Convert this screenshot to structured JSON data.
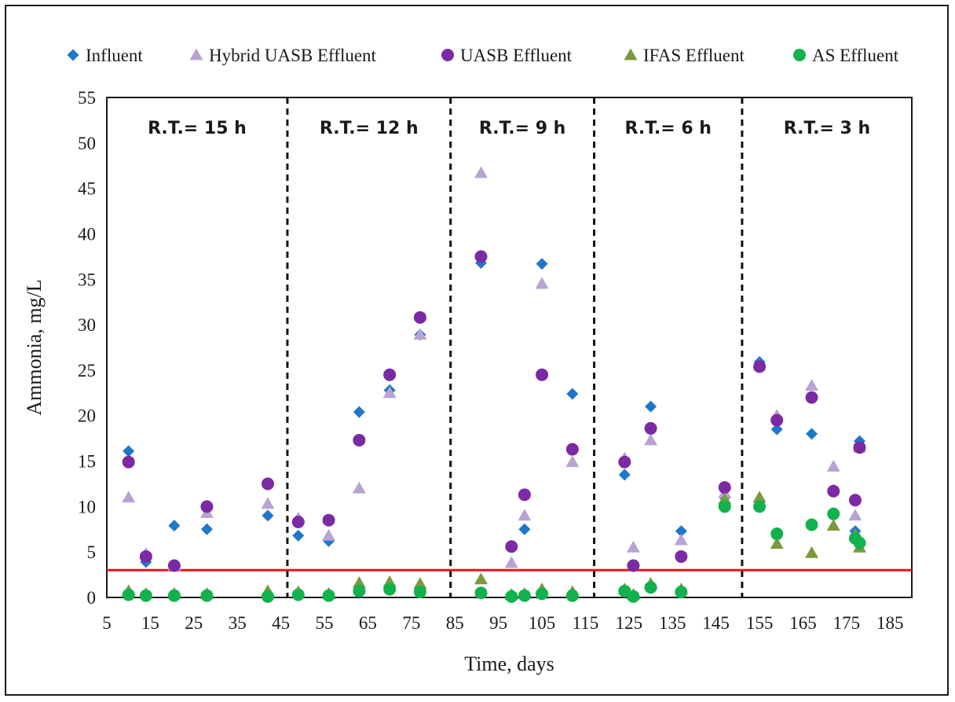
{
  "chart_data": {
    "type": "scatter",
    "xlabel": "Time, days",
    "ylabel": "Ammonia, mg/L",
    "xlim": [
      5,
      190
    ],
    "ylim": [
      0,
      55
    ],
    "x_ticks": [
      5,
      15,
      25,
      35,
      45,
      55,
      65,
      75,
      85,
      95,
      105,
      115,
      125,
      135,
      145,
      155,
      165,
      175,
      185
    ],
    "y_ticks": [
      0,
      5,
      10,
      15,
      20,
      25,
      30,
      35,
      40,
      45,
      50,
      55
    ],
    "threshold": {
      "y": 3,
      "color": "#e8141b"
    },
    "periods": [
      {
        "label": "R.T.= 15 h",
        "x_start": 5,
        "x_end": 46.5
      },
      {
        "label": "R.T.= 12 h",
        "x_start": 46.5,
        "x_end": 84
      },
      {
        "label": "R.T.= 9 h",
        "x_start": 84,
        "x_end": 117
      },
      {
        "label": "R.T.= 6 h",
        "x_start": 117,
        "x_end": 151
      },
      {
        "label": "R.T.= 3 h",
        "x_start": 151,
        "x_end": 190
      }
    ],
    "series": [
      {
        "name": "Influent",
        "marker": "diamond",
        "color": "#1f77c9",
        "points": [
          [
            10,
            16.1
          ],
          [
            14,
            3.9
          ],
          [
            20.5,
            7.9
          ],
          [
            28,
            7.5
          ],
          [
            42,
            9
          ],
          [
            49,
            6.8
          ],
          [
            56,
            6.2
          ],
          [
            63,
            20.4
          ],
          [
            70,
            22.8
          ],
          [
            77,
            28.9
          ],
          [
            91,
            36.8
          ],
          [
            98,
            0.3
          ],
          [
            101,
            7.5
          ],
          [
            105,
            36.7
          ],
          [
            112,
            22.4
          ],
          [
            124,
            13.5
          ],
          [
            130,
            21
          ],
          [
            137,
            7.3
          ],
          [
            147,
            11
          ],
          [
            155,
            25.9
          ],
          [
            159,
            18.5
          ],
          [
            167,
            18
          ],
          [
            172,
            11.8
          ],
          [
            177,
            7.3
          ],
          [
            178,
            17.2
          ]
        ]
      },
      {
        "name": "Hybrid UASB Effluent",
        "marker": "triangle",
        "color": "#b9a3d3",
        "points": [
          [
            10,
            11
          ],
          [
            14,
            4.8
          ],
          [
            20.5,
            3.5
          ],
          [
            28,
            9.3
          ],
          [
            42,
            10.3
          ],
          [
            49,
            8.7
          ],
          [
            56,
            6.8
          ],
          [
            63,
            12
          ],
          [
            70,
            22.5
          ],
          [
            77,
            28.9
          ],
          [
            91,
            46.7
          ],
          [
            98,
            3.8
          ],
          [
            101,
            9
          ],
          [
            105,
            34.5
          ],
          [
            112,
            14.9
          ],
          [
            124,
            15.3
          ],
          [
            126,
            5.5
          ],
          [
            130,
            17.3
          ],
          [
            137,
            6.3
          ],
          [
            147,
            11.5
          ],
          [
            155,
            25.5
          ],
          [
            159,
            20
          ],
          [
            167,
            23.3
          ],
          [
            172,
            14.4
          ],
          [
            177,
            9
          ],
          [
            178,
            16.5
          ]
        ]
      },
      {
        "name": "UASB Effluent",
        "marker": "circle",
        "color": "#7b2aa3",
        "points": [
          [
            10,
            14.9
          ],
          [
            14,
            4.5
          ],
          [
            20.5,
            3.5
          ],
          [
            28,
            10
          ],
          [
            42,
            12.5
          ],
          [
            49,
            8.3
          ],
          [
            56,
            8.5
          ],
          [
            63,
            17.3
          ],
          [
            70,
            24.5
          ],
          [
            77,
            30.8
          ],
          [
            91,
            37.5
          ],
          [
            98,
            5.6
          ],
          [
            101,
            11.3
          ],
          [
            105,
            24.5
          ],
          [
            112,
            16.3
          ],
          [
            124,
            14.9
          ],
          [
            126,
            3.5
          ],
          [
            130,
            18.6
          ],
          [
            137,
            4.5
          ],
          [
            147,
            12.1
          ],
          [
            155,
            25.4
          ],
          [
            159,
            19.5
          ],
          [
            167,
            22
          ],
          [
            172,
            11.7
          ],
          [
            177,
            10.7
          ],
          [
            178,
            16.5
          ]
        ]
      },
      {
        "name": "IFAS Effluent",
        "marker": "triangle",
        "color": "#7a9a3c",
        "points": [
          [
            10,
            0.7
          ],
          [
            14,
            0.4
          ],
          [
            20.5,
            0.4
          ],
          [
            28,
            0.4
          ],
          [
            42,
            0.7
          ],
          [
            49,
            0.6
          ],
          [
            56,
            0.4
          ],
          [
            63,
            1.6
          ],
          [
            70,
            1.7
          ],
          [
            77,
            1.5
          ],
          [
            91,
            2
          ],
          [
            98,
            0.3
          ],
          [
            101,
            0.4
          ],
          [
            105,
            0.9
          ],
          [
            112,
            0.6
          ],
          [
            124,
            0.9
          ],
          [
            126,
            0.3
          ],
          [
            130,
            1.5
          ],
          [
            137,
            0.9
          ],
          [
            147,
            10.8
          ],
          [
            155,
            11
          ],
          [
            159,
            5.9
          ],
          [
            167,
            4.9
          ],
          [
            172,
            7.9
          ],
          [
            177,
            6.9
          ],
          [
            178,
            5.5
          ]
        ]
      },
      {
        "name": "AS Effluent",
        "marker": "circle",
        "color": "#11b24e",
        "points": [
          [
            10,
            0.3
          ],
          [
            14,
            0.2
          ],
          [
            20.5,
            0.2
          ],
          [
            28,
            0.2
          ],
          [
            42,
            0.1
          ],
          [
            49,
            0.3
          ],
          [
            56,
            0.2
          ],
          [
            63,
            0.7
          ],
          [
            70,
            0.9
          ],
          [
            77,
            0.6
          ],
          [
            91,
            0.5
          ],
          [
            98,
            0.1
          ],
          [
            101,
            0.2
          ],
          [
            105,
            0.4
          ],
          [
            112,
            0.2
          ],
          [
            124,
            0.7
          ],
          [
            126,
            0.1
          ],
          [
            130,
            1.1
          ],
          [
            137,
            0.6
          ],
          [
            147,
            10
          ],
          [
            155,
            10
          ],
          [
            159,
            7
          ],
          [
            167,
            8
          ],
          [
            172,
            9.2
          ],
          [
            177,
            6.5
          ],
          [
            178,
            6
          ]
        ]
      }
    ]
  }
}
